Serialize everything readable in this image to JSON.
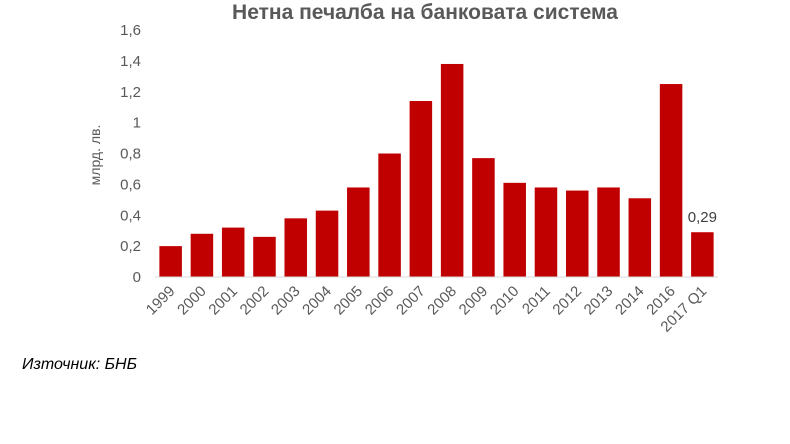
{
  "chart_data": {
    "type": "bar",
    "title": "Нетна печалба на банковата система",
    "ylabel": "млрд. лв.",
    "xlabel": "",
    "ylim": [
      0,
      1.6
    ],
    "yticks": [
      "0",
      "0,2",
      "0,4",
      "0,6",
      "0,8",
      "1",
      "1,2",
      "1,4",
      "1,6"
    ],
    "grid": false,
    "categories": [
      "1999",
      "2000",
      "2001",
      "2002",
      "2003",
      "2004",
      "2005",
      "2006",
      "2007",
      "2008",
      "2009",
      "2010",
      "2011",
      "2012",
      "2013",
      "2014",
      "2016",
      "2017 Q1"
    ],
    "values": [
      0.2,
      0.28,
      0.32,
      0.26,
      0.38,
      0.43,
      0.58,
      0.8,
      1.14,
      1.38,
      0.77,
      0.61,
      0.58,
      0.56,
      0.58,
      0.51,
      1.25,
      0.29
    ],
    "data_labels": [
      {
        "category": "2017 Q1",
        "text": "0,29"
      }
    ],
    "bar_color": "#c00000"
  },
  "source": "Източник: БНБ"
}
